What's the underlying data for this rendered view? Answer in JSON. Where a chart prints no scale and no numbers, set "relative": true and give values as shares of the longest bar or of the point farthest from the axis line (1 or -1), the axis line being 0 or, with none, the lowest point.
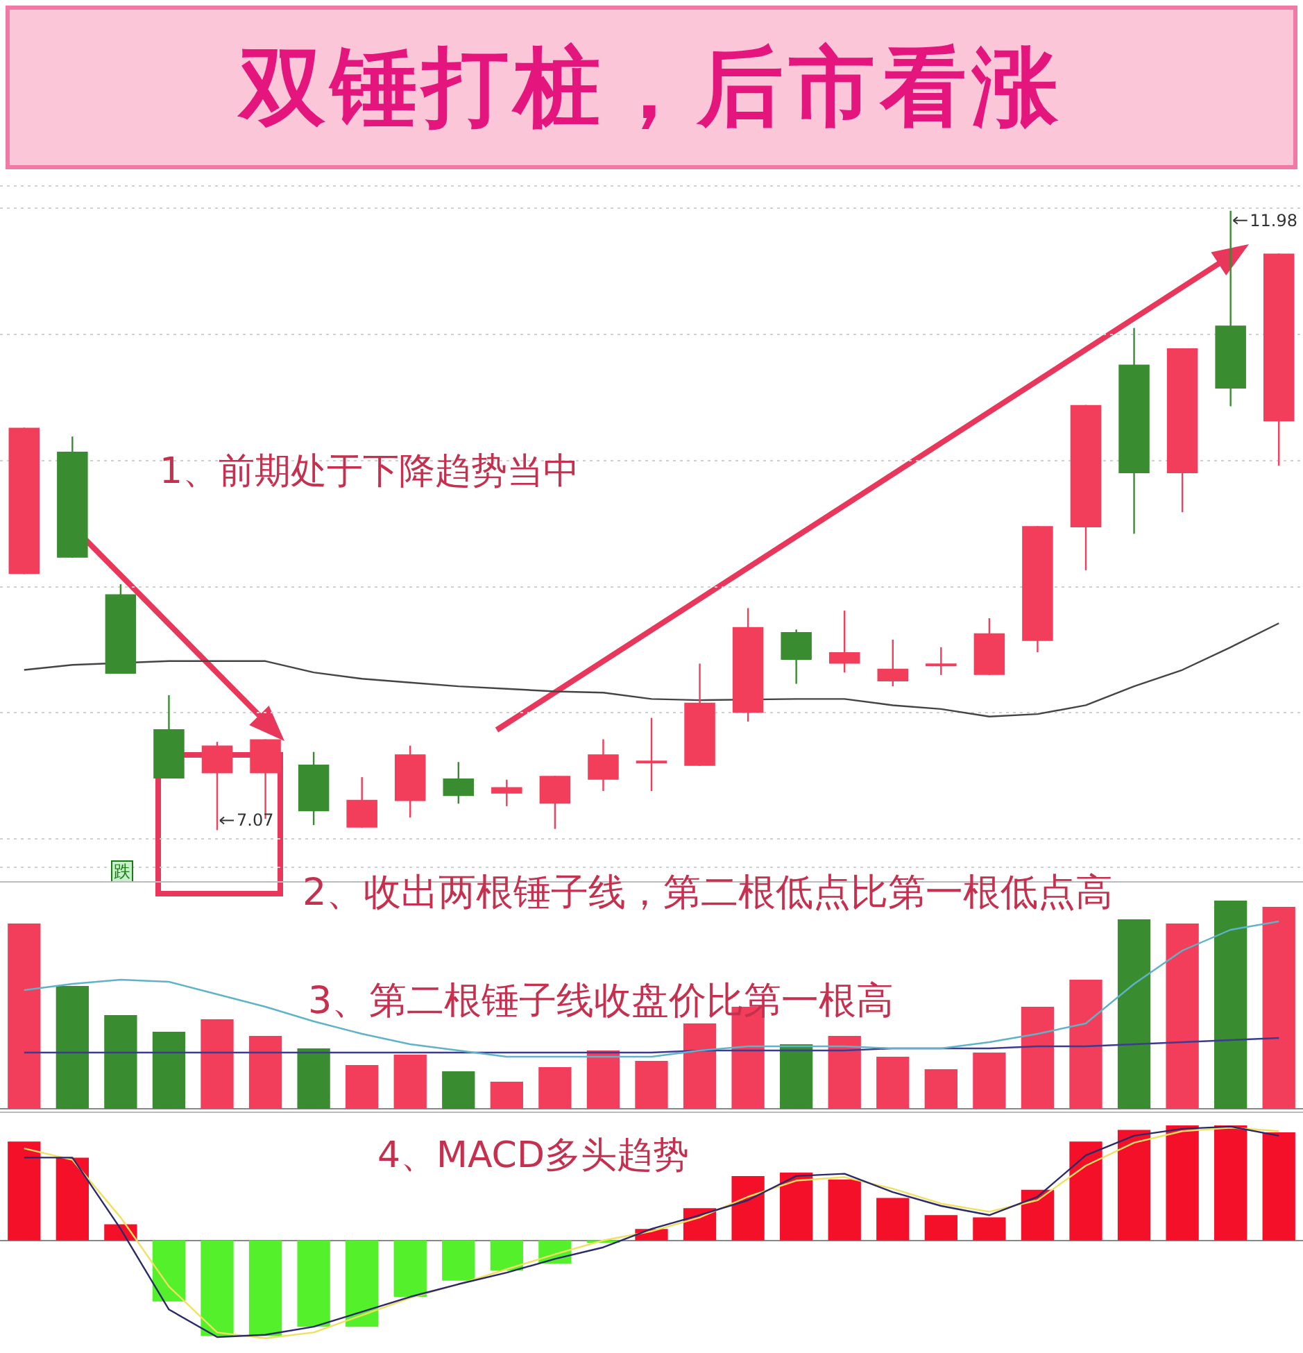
{
  "chart_data": [
    {
      "type": "candlestick",
      "title": "双锤打桩，后市看涨",
      "categories": [
        null,
        null,
        null,
        null,
        null,
        null,
        null,
        null,
        null,
        null,
        null,
        null,
        null,
        null,
        null,
        null,
        null,
        null,
        null,
        null,
        null,
        null,
        null,
        null,
        null,
        null,
        null
      ],
      "ohlc": [
        [
          9.1,
          10.26,
          9.1,
          10.26
        ],
        [
          10.07,
          10.19,
          9.23,
          9.23
        ],
        [
          8.94,
          9.02,
          8.31,
          8.31
        ],
        [
          7.87,
          8.14,
          7.48,
          7.48
        ],
        [
          7.52,
          7.77,
          7.07,
          7.74
        ],
        [
          7.52,
          7.79,
          7.16,
          7.79
        ],
        [
          7.59,
          7.69,
          7.11,
          7.22
        ],
        [
          7.09,
          7.49,
          7.09,
          7.31
        ],
        [
          7.3,
          7.74,
          7.17,
          7.67
        ],
        [
          7.48,
          7.61,
          7.28,
          7.34
        ],
        [
          7.36,
          7.47,
          7.26,
          7.41
        ],
        [
          7.28,
          7.5,
          7.08,
          7.5
        ],
        [
          7.47,
          7.79,
          7.38,
          7.67
        ],
        [
          7.6,
          7.96,
          7.38,
          7.61
        ],
        [
          7.58,
          8.39,
          7.58,
          8.08
        ],
        [
          8.0,
          8.83,
          7.93,
          8.68
        ],
        [
          8.64,
          8.66,
          8.23,
          8.42
        ],
        [
          8.39,
          8.81,
          8.32,
          8.48
        ],
        [
          8.25,
          8.58,
          8.21,
          8.35
        ],
        [
          8.37,
          8.52,
          8.3,
          8.38
        ],
        [
          8.3,
          8.75,
          8.3,
          8.63
        ],
        [
          8.57,
          9.48,
          8.48,
          9.48
        ],
        [
          9.47,
          10.44,
          9.13,
          10.44
        ],
        [
          10.76,
          11.05,
          9.42,
          9.9
        ],
        [
          9.9,
          10.89,
          9.59,
          10.89
        ],
        [
          11.07,
          11.98,
          10.43,
          10.57
        ],
        [
          10.31,
          11.64,
          9.96,
          11.64
        ]
      ],
      "colors": [
        "#f23d5b",
        "#3a8c30",
        "#3a8c30",
        "#3a8c30",
        "#f23d5b",
        "#f23d5b",
        "#3a8c30",
        "#f23d5b",
        "#f23d5b",
        "#3a8c30",
        "#f23d5b",
        "#f23d5b",
        "#f23d5b",
        "#f23d5b",
        "#f23d5b",
        "#f23d5b",
        "#3a8c30",
        "#f23d5b",
        "#f23d5b",
        "#f23d5b",
        "#f23d5b",
        "#f23d5b",
        "#f23d5b",
        "#3a8c30",
        "#f23d5b",
        "#3a8c30",
        "#f23d5b"
      ],
      "series": [
        {
          "type": "line",
          "color": "#444444",
          "values": [
            8.34,
            8.38,
            null,
            8.41,
            8.41,
            8.41,
            8.32,
            8.27,
            8.24,
            8.21,
            8.19,
            8.17,
            8.16,
            8.11,
            8.1,
            null,
            8.11,
            8.11,
            8.06,
            8.03,
            7.97,
            7.99,
            8.06,
            8.21,
            8.34,
            8.52,
            8.71
          ]
        }
      ],
      "grid": "y",
      "annotations": [
        "1、前期处于下降趋势当中",
        "7.07",
        "11.98",
        "跌"
      ]
    },
    {
      "type": "bar",
      "relative": true,
      "categories": [
        null,
        null,
        null,
        null,
        null,
        null,
        null,
        null,
        null,
        null,
        null,
        null,
        null,
        null,
        null,
        null,
        null,
        null,
        null,
        null,
        null,
        null,
        null,
        null,
        null,
        null,
        null
      ],
      "series": [
        {
          "type": "bar",
          "colors": [
            "#f23d5b",
            "#3a8c30",
            "#3a8c30",
            "#3a8c30",
            "#f23d5b",
            "#f23d5b",
            "#3a8c30",
            "#f23d5b",
            "#f23d5b",
            "#3a8c30",
            "#f23d5b",
            "#f23d5b",
            "#f23d5b",
            "#f23d5b",
            "#f23d5b",
            "#f23d5b",
            "#3a8c30",
            "#f23d5b",
            "#f23d5b",
            "#f23d5b",
            "#f23d5b",
            "#f23d5b",
            "#f23d5b",
            "#3a8c30",
            "#f23d5b",
            "#3a8c30",
            "#f23d5b"
          ],
          "values": [
            0.89,
            0.59,
            0.45,
            0.37,
            0.43,
            0.35,
            0.29,
            0.21,
            0.26,
            0.18,
            0.13,
            0.2,
            0.28,
            0.23,
            0.41,
            0.49,
            0.31,
            0.35,
            0.25,
            0.19,
            0.27,
            0.49,
            0.62,
            0.91,
            0.89,
            1,
            0.97
          ]
        },
        {
          "type": "line",
          "color": "#5fb3c8",
          "values": [
            0.57,
            0.6,
            0.62,
            0.61,
            0.55,
            0.49,
            0.42,
            0.36,
            0.31,
            0.28,
            0.25,
            0.25,
            0.25,
            0.25,
            0.28,
            0.3,
            0.3,
            0.3,
            0.29,
            0.29,
            0.32,
            0.36,
            0.41,
            0.6,
            0.76,
            0.86,
            0.9
          ]
        },
        {
          "type": "line",
          "color": "#3b3b8f",
          "values": [
            0.27,
            0.27,
            0.27,
            0.27,
            0.27,
            0.27,
            0.27,
            0.27,
            0.27,
            0.27,
            0.27,
            0.27,
            0.27,
            0.27,
            0.28,
            0.28,
            0.28,
            0.28,
            0.29,
            0.29,
            0.29,
            0.3,
            0.3,
            0.31,
            0.32,
            0.33,
            0.34
          ]
        }
      ],
      "annotations": [
        "2、收出两根锤子线，第二根低点比第一根低点高",
        "3、第二根锤子线收盘价比第一根高"
      ]
    },
    {
      "type": "bar",
      "relative": true,
      "categories": [
        null,
        null,
        null,
        null,
        null,
        null,
        null,
        null,
        null,
        null,
        null,
        null,
        null,
        null,
        null,
        null,
        null,
        null,
        null,
        null,
        null,
        null,
        null,
        null,
        null,
        null,
        null
      ],
      "series": [
        {
          "type": "bar",
          "colors": [
            "#f5102a",
            "#f5102a",
            "#f5102a",
            "#55f02c",
            "#55f02c",
            "#55f02c",
            "#55f02c",
            "#55f02c",
            "#55f02c",
            "#55f02c",
            "#55f02c",
            "#55f02c",
            "#55f02c",
            "#f5102a",
            "#f5102a",
            "#f5102a",
            "#f5102a",
            "#f5102a",
            "#f5102a",
            "#f5102a",
            "#f5102a",
            "#f5102a",
            "#f5102a",
            "#f5102a",
            "#f5102a",
            "#f5102a",
            "#f5102a"
          ],
          "values": [
            0.86,
            0.72,
            0.14,
            -0.53,
            -0.83,
            -0.83,
            -0.75,
            -0.75,
            -0.49,
            -0.35,
            -0.26,
            -0.2,
            -0.02,
            0.1,
            0.28,
            0.56,
            0.59,
            0.53,
            0.37,
            0.22,
            0.2,
            0.44,
            0.86,
            0.96,
            1,
            1,
            0.94
          ]
        },
        {
          "type": "line",
          "color": "#2a2a6a",
          "values": [
            0.72,
            0.72,
            0.1,
            -0.6,
            -0.84,
            -0.82,
            -0.75,
            -0.62,
            -0.49,
            -0.38,
            -0.28,
            -0.16,
            -0.06,
            0.1,
            0.22,
            0.35,
            0.56,
            0.58,
            0.42,
            0.3,
            0.22,
            0.38,
            0.74,
            0.91,
            0.97,
            0.99,
            0.91
          ]
        },
        {
          "type": "line",
          "color": "#f0e060",
          "values": [
            0.8,
            0.7,
            0.2,
            -0.4,
            -0.8,
            -0.85,
            -0.8,
            -0.65,
            -0.5,
            -0.38,
            -0.25,
            -0.12,
            0,
            0.08,
            0.2,
            0.38,
            0.52,
            0.55,
            0.45,
            0.32,
            0.25,
            0.35,
            0.65,
            0.85,
            0.95,
            0.98,
            0.95
          ]
        }
      ],
      "annotations": [
        "4、MACD多头趋势"
      ]
    }
  ]
}
